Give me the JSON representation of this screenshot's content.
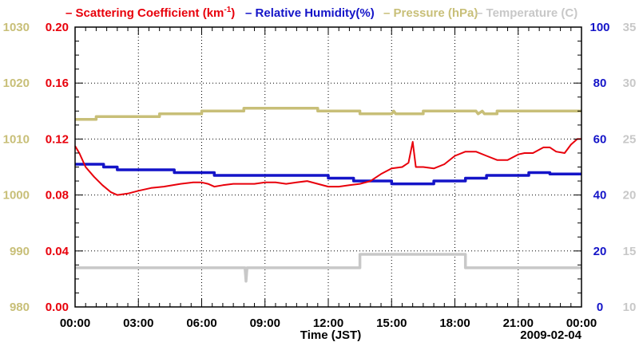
{
  "chart_data": {
    "type": "line",
    "date_label": "2009-02-04",
    "xlabel": "Time (JST)",
    "x_ticks": [
      "00:00",
      "03:00",
      "06:00",
      "09:00",
      "12:00",
      "15:00",
      "18:00",
      "21:00",
      "00:00"
    ],
    "x_range_hours": [
      0,
      24
    ],
    "legend": [
      {
        "marker": "–",
        "text": "Scattering Coefficient (km",
        "sup": "-1",
        "tail": ")",
        "color": "#e8000b"
      },
      {
        "marker": "–",
        "text": "Relative Humidity(%)",
        "color": "#1414c8"
      },
      {
        "marker": "–",
        "text": "Pressure (hPa)",
        "color": "#c8bf78"
      },
      {
        "marker": "–",
        "text": "Temperature (C)",
        "color": "#c8c8c8"
      }
    ],
    "axes": {
      "scattering": {
        "min": 0,
        "max": 0.2,
        "ticks": [
          "0.20",
          "0.16",
          "0.12",
          "0.08",
          "0.04",
          "0.00"
        ],
        "color": "#e8000b"
      },
      "pressure": {
        "min": 980,
        "max": 1030,
        "ticks": [
          "1030",
          "1020",
          "1010",
          "1000",
          "990",
          "980"
        ],
        "color": "#c8bf78"
      },
      "humidity": {
        "min": 0,
        "max": 100,
        "ticks": [
          "100",
          "80",
          "60",
          "40",
          "20",
          "0"
        ],
        "color": "#1414c8"
      },
      "temperature": {
        "min": 10,
        "max": 35,
        "ticks": [
          "35",
          "30",
          "25",
          "20",
          "15",
          "10"
        ],
        "color": "#c8c8c8"
      }
    },
    "series": [
      {
        "name": "Scattering Coefficient",
        "axis": "scattering",
        "color": "#e8000b",
        "points": [
          [
            0,
            0.115
          ],
          [
            0.2,
            0.11
          ],
          [
            0.5,
            0.1
          ],
          [
            0.9,
            0.093
          ],
          [
            1.3,
            0.087
          ],
          [
            1.7,
            0.082
          ],
          [
            2.0,
            0.08
          ],
          [
            2.5,
            0.081
          ],
          [
            3.0,
            0.083
          ],
          [
            3.6,
            0.085
          ],
          [
            4.2,
            0.086
          ],
          [
            5.0,
            0.088
          ],
          [
            5.6,
            0.089
          ],
          [
            6.0,
            0.089
          ],
          [
            6.3,
            0.088
          ],
          [
            6.6,
            0.086
          ],
          [
            7.0,
            0.087
          ],
          [
            7.5,
            0.088
          ],
          [
            8.0,
            0.088
          ],
          [
            8.5,
            0.088
          ],
          [
            9.0,
            0.089
          ],
          [
            9.5,
            0.089
          ],
          [
            10.0,
            0.088
          ],
          [
            10.5,
            0.089
          ],
          [
            11.0,
            0.09
          ],
          [
            11.5,
            0.088
          ],
          [
            12.0,
            0.086
          ],
          [
            12.5,
            0.086
          ],
          [
            13.0,
            0.087
          ],
          [
            13.5,
            0.088
          ],
          [
            14.0,
            0.09
          ],
          [
            14.5,
            0.095
          ],
          [
            15.0,
            0.099
          ],
          [
            15.5,
            0.1
          ],
          [
            15.8,
            0.103
          ],
          [
            16.0,
            0.118
          ],
          [
            16.15,
            0.1
          ],
          [
            16.5,
            0.1
          ],
          [
            17.0,
            0.099
          ],
          [
            17.5,
            0.102
          ],
          [
            18.0,
            0.108
          ],
          [
            18.5,
            0.111
          ],
          [
            19.0,
            0.111
          ],
          [
            19.5,
            0.108
          ],
          [
            20.0,
            0.105
          ],
          [
            20.5,
            0.105
          ],
          [
            21.0,
            0.109
          ],
          [
            21.3,
            0.11
          ],
          [
            21.7,
            0.11
          ],
          [
            22.2,
            0.114
          ],
          [
            22.5,
            0.114
          ],
          [
            22.8,
            0.111
          ],
          [
            23.2,
            0.11
          ],
          [
            23.5,
            0.116
          ],
          [
            23.8,
            0.12
          ],
          [
            24.0,
            0.12
          ]
        ]
      },
      {
        "name": "Relative Humidity",
        "axis": "humidity",
        "color": "#1414c8",
        "points": [
          [
            0,
            51
          ],
          [
            1.35,
            51
          ],
          [
            1.35,
            50
          ],
          [
            2.0,
            50
          ],
          [
            2.0,
            49
          ],
          [
            4.7,
            49
          ],
          [
            4.7,
            48
          ],
          [
            6.6,
            48
          ],
          [
            6.6,
            47
          ],
          [
            12.0,
            47
          ],
          [
            12.0,
            46
          ],
          [
            13.2,
            46
          ],
          [
            13.2,
            45
          ],
          [
            15.0,
            45
          ],
          [
            15.0,
            44
          ],
          [
            17.0,
            44
          ],
          [
            17.0,
            45
          ],
          [
            18.5,
            45
          ],
          [
            18.5,
            46
          ],
          [
            19.5,
            46
          ],
          [
            19.5,
            47
          ],
          [
            21.5,
            47
          ],
          [
            21.5,
            48
          ],
          [
            22.5,
            48
          ],
          [
            22.5,
            47.5
          ],
          [
            24,
            47.5
          ]
        ]
      },
      {
        "name": "Pressure",
        "axis": "pressure",
        "color": "#c8bf78",
        "points": [
          [
            0,
            1013.5
          ],
          [
            1.0,
            1013.5
          ],
          [
            1.0,
            1014
          ],
          [
            4.0,
            1014
          ],
          [
            4.0,
            1014.5
          ],
          [
            6.0,
            1014.5
          ],
          [
            6.0,
            1015
          ],
          [
            8.0,
            1015
          ],
          [
            8.0,
            1015.5
          ],
          [
            11.5,
            1015.5
          ],
          [
            11.5,
            1015
          ],
          [
            13.5,
            1015
          ],
          [
            13.5,
            1014.5
          ],
          [
            15.0,
            1014.5
          ],
          [
            15.1,
            1015
          ],
          [
            15.2,
            1014.5
          ],
          [
            16.5,
            1014.5
          ],
          [
            16.5,
            1015
          ],
          [
            19.0,
            1015
          ],
          [
            19.1,
            1014.5
          ],
          [
            19.3,
            1015
          ],
          [
            19.4,
            1014.5
          ],
          [
            20.0,
            1014.5
          ],
          [
            20.0,
            1015
          ],
          [
            24,
            1015
          ]
        ]
      },
      {
        "name": "Temperature",
        "axis": "temperature",
        "color": "#c8c8c8",
        "points": [
          [
            0,
            13.5
          ],
          [
            8.05,
            13.5
          ],
          [
            8.1,
            12.3
          ],
          [
            8.15,
            13.5
          ],
          [
            13.5,
            13.5
          ],
          [
            13.5,
            14.7
          ],
          [
            18.5,
            14.7
          ],
          [
            18.5,
            13.5
          ],
          [
            24,
            13.5
          ]
        ]
      }
    ]
  }
}
